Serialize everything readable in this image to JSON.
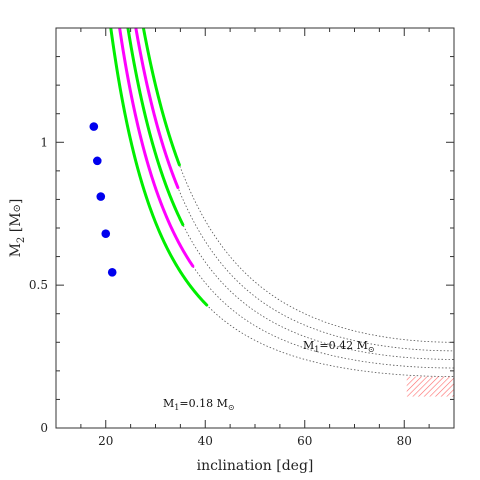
{
  "chart_data": {
    "type": "line",
    "title": "",
    "xlabel": "inclination [deg]",
    "ylabel": "M2 [M⊙]",
    "xlim": [
      10,
      90
    ],
    "ylim": [
      0,
      1.4
    ],
    "x_ticks": [
      20,
      40,
      60,
      80
    ],
    "y_ticks": [
      0,
      0.5,
      1
    ],
    "x_tick_labels": [
      "20",
      "40",
      "60",
      "80"
    ],
    "y_tick_labels": [
      "0",
      "0.5",
      "1"
    ],
    "grid": false,
    "legend": "none",
    "series_color_allowed": "#00ee00",
    "series_color_preferred": "#ff00ff",
    "curve_color_dotted": "#555555",
    "point_color": "#0000ee",
    "hatch_color": "#ff5555",
    "curves": [
      {
        "m_inf": 0.18,
        "style": "green",
        "solid_x": [
          15.2,
          40.3
        ]
      },
      {
        "m_inf": 0.21,
        "style": "magenta",
        "solid_x": [
          16.0,
          37.5
        ]
      },
      {
        "m_inf": 0.24,
        "style": "green",
        "solid_x": [
          16.4,
          35.5
        ]
      },
      {
        "m_inf": 0.27,
        "style": "magenta",
        "solid_x": [
          16.8,
          34.5
        ]
      },
      {
        "m_inf": 0.3,
        "style": "green",
        "solid_x": [
          16.9,
          34.8
        ]
      }
    ],
    "points": [
      {
        "x": 21.3,
        "y": 0.545
      },
      {
        "x": 20.0,
        "y": 0.68
      },
      {
        "x": 19.0,
        "y": 0.81
      },
      {
        "x": 18.3,
        "y": 0.935
      },
      {
        "x": 17.6,
        "y": 1.055
      }
    ],
    "hatch_region": {
      "x": [
        80.5,
        90
      ],
      "y": [
        0.11,
        0.18
      ]
    },
    "annotations": {
      "top": {
        "x": 62,
        "y": 0.295,
        "prefix": "M",
        "sub": "1",
        "text": "=0.42 M",
        "symbol": "⊙"
      },
      "bottom": {
        "x": 27,
        "y": 0.08,
        "prefix": "M",
        "sub": "1",
        "text": "=0.18 M",
        "symbol": "⊙"
      }
    }
  },
  "labels": {
    "xlabel": "inclination [deg]",
    "ylabel_prefix": "M",
    "ylabel_sub": "2",
    "ylabel_suffix": " [M",
    "ylabel_symbol": "⊙",
    "ylabel_end": "]"
  }
}
